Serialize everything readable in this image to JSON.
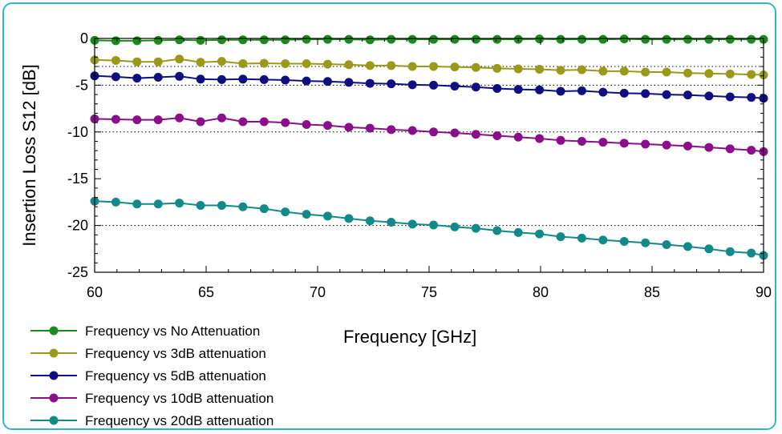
{
  "chart_data": {
    "type": "line",
    "title": "",
    "xlabel": "Frequency [GHz]",
    "ylabel": "Insertion Loss S12 [dB]",
    "xlim": [
      60,
      90
    ],
    "ylim": [
      -25,
      0
    ],
    "xticks": [
      60,
      65,
      70,
      75,
      80,
      85,
      90
    ],
    "yticks": [
      0,
      -5,
      -10,
      -15,
      -20,
      -25
    ],
    "grid": "dotted horizontal lines at -3, -5, -10, -20",
    "legend_position": "bottom-left",
    "x": [
      60,
      60.95,
      61.9,
      62.85,
      63.8,
      64.75,
      65.7,
      66.65,
      67.6,
      68.55,
      69.5,
      70.45,
      71.4,
      72.35,
      73.3,
      74.25,
      75.2,
      76.15,
      77.1,
      78.05,
      79,
      79.95,
      80.9,
      81.85,
      82.8,
      83.75,
      84.7,
      85.65,
      86.6,
      87.55,
      88.5,
      89.45,
      90
    ],
    "series": [
      {
        "name": "Frequency vs No Attenuation",
        "color": "#1a8a1a",
        "values": [
          -0.2,
          -0.25,
          -0.25,
          -0.2,
          -0.15,
          -0.2,
          -0.15,
          -0.15,
          -0.15,
          -0.15,
          -0.1,
          -0.1,
          -0.1,
          -0.15,
          -0.1,
          -0.1,
          -0.1,
          -0.1,
          -0.1,
          -0.1,
          -0.1,
          -0.05,
          -0.1,
          -0.1,
          -0.1,
          -0.05,
          -0.1,
          -0.1,
          -0.1,
          -0.1,
          -0.1,
          -0.1,
          -0.1
        ]
      },
      {
        "name": "Frequency vs 3dB attenuation",
        "color": "#9a9a1a",
        "values": [
          -2.3,
          -2.35,
          -2.5,
          -2.5,
          -2.2,
          -2.55,
          -2.45,
          -2.7,
          -2.65,
          -2.7,
          -2.7,
          -2.75,
          -2.8,
          -2.9,
          -2.9,
          -3.0,
          -3.0,
          -3.05,
          -3.1,
          -3.2,
          -3.25,
          -3.3,
          -3.4,
          -3.35,
          -3.5,
          -3.5,
          -3.6,
          -3.6,
          -3.7,
          -3.75,
          -3.8,
          -3.85,
          -3.9
        ]
      },
      {
        "name": "Frequency vs 5dB attenuation",
        "color": "#0f0f80",
        "values": [
          -4.0,
          -4.1,
          -4.25,
          -4.15,
          -4.05,
          -4.35,
          -4.4,
          -4.35,
          -4.4,
          -4.45,
          -4.55,
          -4.6,
          -4.7,
          -4.8,
          -4.85,
          -4.95,
          -5.0,
          -5.1,
          -5.2,
          -5.35,
          -5.45,
          -5.5,
          -5.65,
          -5.6,
          -5.75,
          -5.85,
          -5.9,
          -6.0,
          -6.05,
          -6.15,
          -6.25,
          -6.3,
          -6.4
        ]
      },
      {
        "name": "Frequency vs 10dB attenuation",
        "color": "#8a0f8a",
        "values": [
          -8.6,
          -8.65,
          -8.7,
          -8.7,
          -8.5,
          -8.9,
          -8.5,
          -8.9,
          -8.9,
          -9.0,
          -9.2,
          -9.3,
          -9.5,
          -9.6,
          -9.75,
          -9.85,
          -10.0,
          -10.1,
          -10.25,
          -10.4,
          -10.55,
          -10.7,
          -10.9,
          -11.0,
          -11.1,
          -11.2,
          -11.3,
          -11.4,
          -11.5,
          -11.65,
          -11.8,
          -11.95,
          -12.1
        ]
      },
      {
        "name": "Frequency vs 20dB attenuation",
        "color": "#138a8a",
        "values": [
          -17.4,
          -17.5,
          -17.7,
          -17.7,
          -17.6,
          -17.85,
          -17.85,
          -18.0,
          -18.2,
          -18.55,
          -18.8,
          -19.0,
          -19.25,
          -19.5,
          -19.65,
          -19.85,
          -19.95,
          -20.15,
          -20.3,
          -20.55,
          -20.75,
          -20.9,
          -21.2,
          -21.35,
          -21.55,
          -21.7,
          -21.85,
          -22.05,
          -22.25,
          -22.5,
          -22.8,
          -22.95,
          -23.2
        ]
      }
    ]
  }
}
